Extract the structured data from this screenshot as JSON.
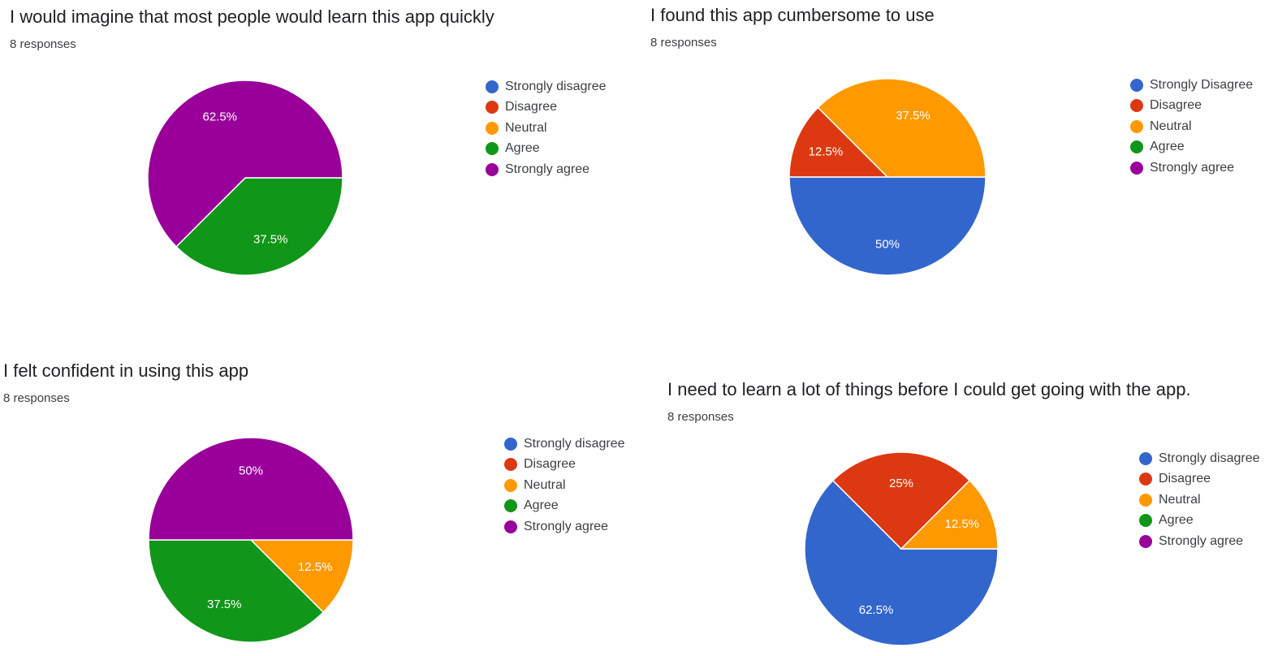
{
  "colors": {
    "strongly_disagree": "#3366cc",
    "disagree": "#dc3912",
    "neutral": "#ff9900",
    "agree": "#109618",
    "strongly_agree": "#990099"
  },
  "chart_data": [
    {
      "type": "pie",
      "title": "I would imagine that most people would learn this app quickly",
      "subtitle": "8 responses",
      "legend": [
        "Strongly disagree",
        "Disagree",
        "Neutral",
        "Agree",
        "Strongly agree"
      ],
      "values": [
        0,
        0,
        0,
        37.5,
        62.5
      ],
      "labels": [
        "",
        "",
        "",
        "37.5%",
        "62.5%"
      ],
      "legend_position": "right"
    },
    {
      "type": "pie",
      "title": "I found this app cumbersome to use",
      "subtitle": "8 responses",
      "legend": [
        "Strongly Disagree",
        "Disagree",
        "Neutral",
        "Agree",
        "Strongly agree"
      ],
      "values": [
        50,
        12.5,
        37.5,
        0,
        0
      ],
      "labels": [
        "50%",
        "12.5%",
        "37.5%",
        "",
        ""
      ],
      "legend_position": "right"
    },
    {
      "type": "pie",
      "title": "I felt confident in using this app",
      "subtitle": "8 responses",
      "legend": [
        "Strongly disagree",
        "Disagree",
        "Neutral",
        "Agree",
        "Strongly agree"
      ],
      "values": [
        0,
        0,
        12.5,
        37.5,
        50
      ],
      "labels": [
        "",
        "",
        "12.5%",
        "37.5%",
        "50%"
      ],
      "legend_position": "right"
    },
    {
      "type": "pie",
      "title": "I need to learn a lot of things before I could get going with the app.",
      "subtitle": "8 responses",
      "legend": [
        "Strongly disagree",
        "Disagree",
        "Neutral",
        "Agree",
        "Strongly agree"
      ],
      "values": [
        62.5,
        25,
        12.5,
        0,
        0
      ],
      "labels": [
        "62.5%",
        "25%",
        "12.5%",
        "",
        ""
      ],
      "legend_position": "right"
    }
  ]
}
